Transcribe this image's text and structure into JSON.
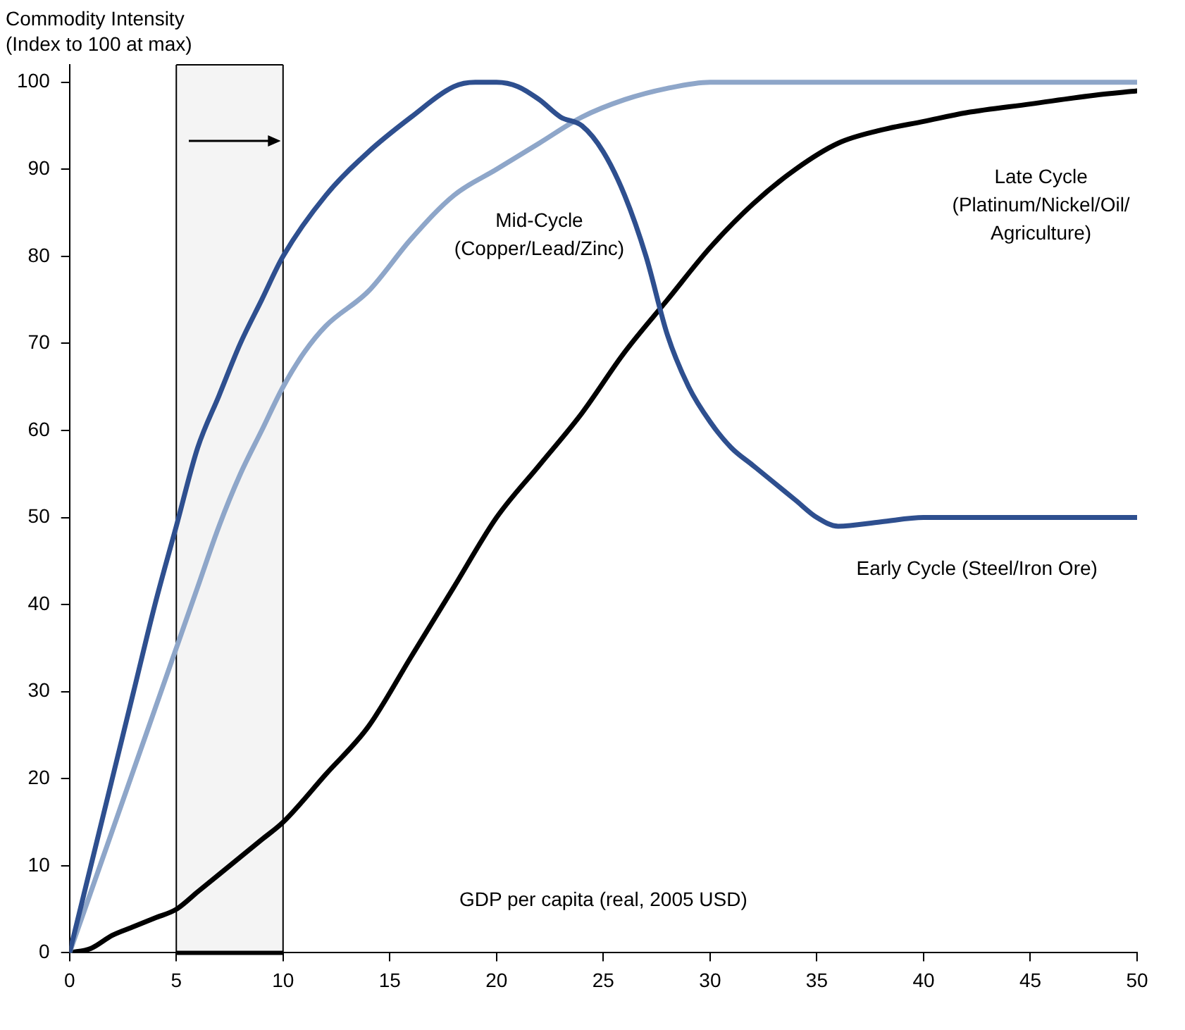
{
  "chart_data": {
    "type": "line",
    "xlabel": "GDP per capita (real, 2005 USD)",
    "ylabel": "Commodity Intensity (Index to 100 at max)",
    "xlim": [
      0,
      50
    ],
    "xticks": [
      0,
      5,
      10,
      15,
      20,
      25,
      30,
      35,
      40,
      45,
      50
    ],
    "ylim": [
      0,
      102
    ],
    "yticks": [
      0,
      10,
      20,
      30,
      40,
      50,
      60,
      70,
      80,
      90,
      100
    ],
    "grid": false,
    "legend": false,
    "marker": "none",
    "line_style": "solid",
    "bands": [
      {
        "axis": "x",
        "from": 5,
        "to": 10,
        "color": "#f4f4f4"
      }
    ],
    "ref_lines": [
      {
        "axis": "x",
        "value": 5,
        "color": "#000000"
      },
      {
        "axis": "x",
        "value": 10,
        "color": "#000000"
      }
    ],
    "series": [
      {
        "name": "Early Cycle (Steel/Iron Ore)",
        "color": "#2e4f8f",
        "x": [
          0,
          1,
          2,
          3,
          4,
          5,
          6,
          7,
          8,
          9,
          10,
          12,
          14,
          16,
          18,
          19,
          20,
          21,
          22,
          23,
          24,
          25,
          26,
          27,
          28,
          29,
          30,
          31,
          32,
          33,
          34,
          35,
          36,
          38,
          40,
          45,
          50
        ],
        "values": [
          0,
          10,
          20,
          30,
          40,
          49,
          58,
          64,
          70,
          75,
          80,
          87,
          92,
          96,
          99.5,
          100,
          100,
          99.5,
          98,
          96,
          95,
          92,
          87,
          80,
          71,
          65,
          61,
          58,
          56,
          54,
          52,
          50,
          49,
          49.5,
          50,
          50,
          50
        ]
      },
      {
        "name": "Mid-Cycle (Copper/Lead/Zinc)",
        "color": "#8ea6c9",
        "x": [
          0,
          1,
          2,
          3,
          4,
          5,
          6,
          7,
          8,
          9,
          10,
          11,
          12,
          14,
          16,
          18,
          20,
          22,
          24,
          26,
          28,
          30,
          35,
          40,
          45,
          50
        ],
        "values": [
          0,
          7,
          14,
          21,
          28,
          35,
          42,
          49,
          55,
          60,
          65,
          69,
          72,
          76,
          82,
          87,
          90,
          93,
          96,
          98,
          99.3,
          100,
          100,
          100,
          100,
          100
        ]
      },
      {
        "name": "Late Cycle (Platinum/Nickel/Oil/Agriculture)",
        "color": "#000000",
        "x": [
          0,
          1,
          2,
          3,
          4,
          5,
          6,
          7,
          8,
          9,
          10,
          12,
          14,
          16,
          18,
          20,
          22,
          24,
          26,
          28,
          30,
          32,
          34,
          36,
          38,
          40,
          42,
          45,
          48,
          50
        ],
        "values": [
          0,
          0.5,
          2,
          3,
          4,
          5,
          7,
          9,
          11,
          13,
          15,
          20.5,
          26,
          34,
          42,
          50,
          56,
          62,
          69,
          75,
          81,
          86,
          90,
          93,
          94.5,
          95.5,
          96.5,
          97.5,
          98.5,
          99
        ]
      }
    ]
  }
}
